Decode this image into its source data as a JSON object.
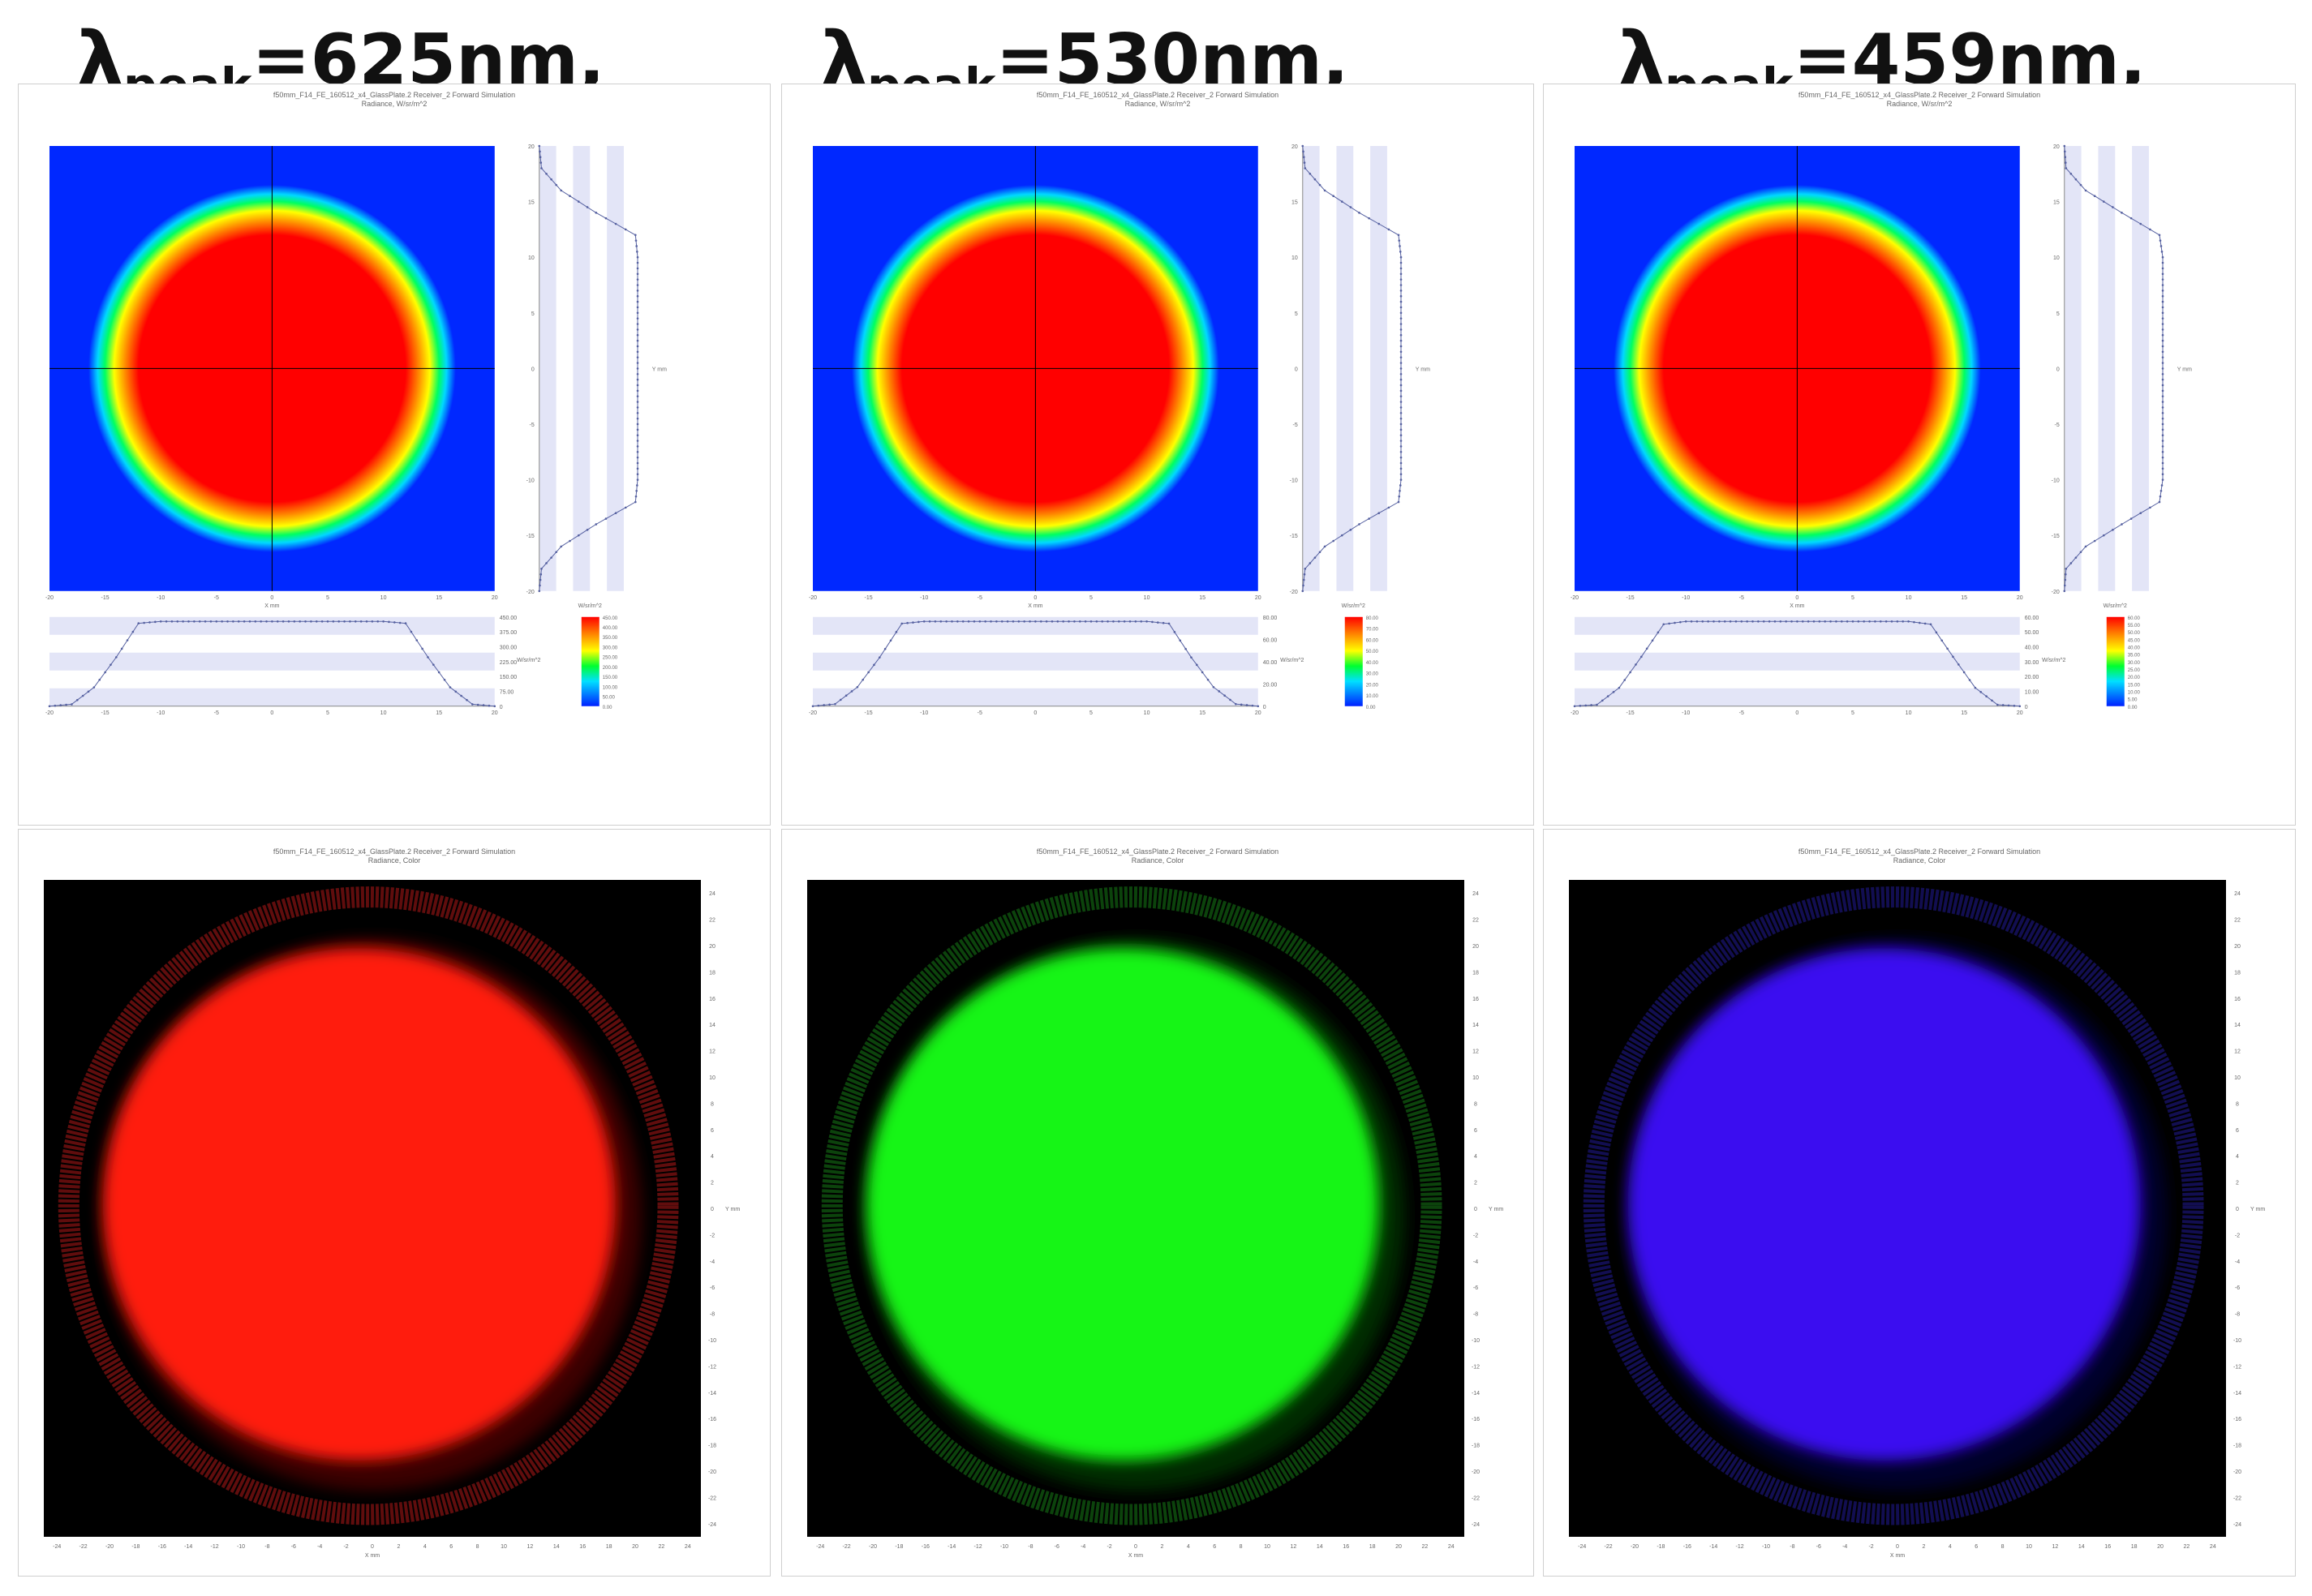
{
  "columns": [
    {
      "title_symbol": "λ",
      "title_sub": "peak",
      "title_value": "=625nm,",
      "top_panel": {
        "header_line1": "f50mm_F14_FE_160512_x4_GlassPlate.2 Receiver_2 Forward Simulation",
        "header_line2": "Radiance, W/sr/m^2",
        "x_axis_label": "X mm",
        "y_axis_label": "Y mm",
        "right_profile_xlabel": "W/sr/m^2",
        "bottom_profile_ylabel": "W/sr/m^2",
        "profile_ticks": [
          "0",
          "75.00",
          "150.00",
          "225.00",
          "300.00",
          "375.00",
          "450.00"
        ],
        "colorbar_ticks": [
          "450.00",
          "400.00",
          "350.00",
          "300.00",
          "250.00",
          "200.00",
          "150.00",
          "100.00",
          "50.00",
          "0.00"
        ]
      },
      "bottom_panel": {
        "header_line1": "f50mm_F14_FE_160512_x4_GlassPlate.2 Receiver_2 Forward Simulation",
        "header_line2": "Radiance, Color",
        "x_axis_label": "X mm",
        "y_axis_label": "Y mm",
        "spot_color": "#ff1a0d",
        "ring_color": "#6a0e0e",
        "glow_color": "#3a0505"
      }
    },
    {
      "title_symbol": "λ",
      "title_sub": "peak",
      "title_value": "=530nm,",
      "top_panel": {
        "header_line1": "f50mm_F14_FE_160512_x4_GlassPlate.2 Receiver_2 Forward Simulation",
        "header_line2": "Radiance, W/sr/m^2",
        "x_axis_label": "X mm",
        "y_axis_label": "Y mm",
        "right_profile_xlabel": "W/sr/m^2",
        "bottom_profile_ylabel": "W/sr/m^2",
        "profile_ticks": [
          "0",
          "20.00",
          "40.00",
          "60.00",
          "80.00"
        ],
        "colorbar_ticks": [
          "80.00",
          "70.00",
          "60.00",
          "50.00",
          "40.00",
          "30.00",
          "20.00",
          "10.00",
          "0.00"
        ]
      },
      "bottom_panel": {
        "header_line1": "f50mm_F14_FE_160512_x4_GlassPlate.2 Receiver_2 Forward Simulation",
        "header_line2": "Radiance, Color",
        "x_axis_label": "X mm",
        "y_axis_label": "Y mm",
        "spot_color": "#14f514",
        "ring_color": "#0d4a0d",
        "glow_color": "#052a05"
      }
    },
    {
      "title_symbol": "λ",
      "title_sub": "peak",
      "title_value": "=459nm,",
      "top_panel": {
        "header_line1": "f50mm_F14_FE_160512_x4_GlassPlate.2 Receiver_2 Forward Simulation",
        "header_line2": "Radiance, W/sr/m^2",
        "x_axis_label": "X mm",
        "y_axis_label": "Y mm",
        "right_profile_xlabel": "W/sr/m^2",
        "bottom_profile_ylabel": "W/sr/m^2",
        "profile_ticks": [
          "0",
          "10.00",
          "20.00",
          "30.00",
          "40.00",
          "50.00",
          "60.00"
        ],
        "colorbar_ticks": [
          "60.00",
          "55.00",
          "50.00",
          "45.00",
          "40.00",
          "35.00",
          "30.00",
          "25.00",
          "20.00",
          "15.00",
          "10.00",
          "5.00",
          "0.00"
        ]
      },
      "bottom_panel": {
        "header_line1": "f50mm_F14_FE_160512_x4_GlassPlate.2 Receiver_2 Forward Simulation",
        "header_line2": "Radiance, Color",
        "x_axis_label": "X mm",
        "y_axis_label": "Y mm",
        "spot_color": "#3a10f0",
        "ring_color": "#14105a",
        "glow_color": "#06052a"
      }
    }
  ],
  "chart_data": [
    {
      "type": "heatmap",
      "title": "f50mm_F14_FE_160512_x4_GlassPlate.2 Receiver_2 Forward Simulation",
      "subtitle": "Radiance, W/sr/m^2",
      "xlabel": "X mm",
      "ylabel": "Y mm",
      "xlim": [
        -20,
        20
      ],
      "ylim": [
        -20,
        20
      ],
      "colormap": "jet",
      "value_range": [
        0,
        450
      ],
      "spot": {
        "center_x": 0,
        "center_y": 0,
        "flat_radius_x": 12,
        "flat_radius_y": 12,
        "falloff_outer_radius": 16.5
      },
      "profile_x": [
        -20,
        -18,
        -16,
        -14,
        -12,
        -10,
        0,
        10,
        12,
        14,
        16,
        18,
        20
      ],
      "profile_y": [
        0,
        10,
        100,
        260,
        440,
        450,
        450,
        450,
        440,
        260,
        100,
        10,
        0
      ]
    },
    {
      "type": "heatmap",
      "title": "f50mm_F14_FE_160512_x4_GlassPlate.2 Receiver_2 Forward Simulation",
      "subtitle": "Radiance, W/sr/m^2",
      "xlabel": "X mm",
      "ylabel": "Y mm",
      "xlim": [
        -20,
        20
      ],
      "ylim": [
        -20,
        20
      ],
      "colormap": "jet",
      "value_range": [
        0,
        80
      ],
      "spot": {
        "center_x": 0,
        "center_y": 0,
        "flat_radius_x": 12,
        "flat_radius_y": 12,
        "falloff_outer_radius": 16.5
      },
      "profile_x": [
        -20,
        -18,
        -16,
        -14,
        -12,
        -10,
        0,
        10,
        12,
        14,
        16,
        18,
        20
      ],
      "profile_y": [
        0,
        2,
        18,
        46,
        78,
        80,
        80,
        80,
        78,
        46,
        18,
        2,
        0
      ]
    },
    {
      "type": "heatmap",
      "title": "f50mm_F14_FE_160512_x4_GlassPlate.2 Receiver_2 Forward Simulation",
      "subtitle": "Radiance, W/sr/m^2",
      "xlabel": "X mm",
      "ylabel": "Y mm",
      "xlim": [
        -20,
        20
      ],
      "ylim": [
        -20,
        20
      ],
      "colormap": "jet",
      "value_range": [
        0,
        60
      ],
      "spot": {
        "center_x": 0,
        "center_y": 0,
        "flat_radius_x": 12,
        "flat_radius_y": 12,
        "falloff_outer_radius": 16.5
      },
      "profile_x": [
        -20,
        -18,
        -16,
        -14,
        -12,
        -10,
        0,
        10,
        12,
        14,
        16,
        18,
        20
      ],
      "profile_y": [
        0,
        1,
        13,
        35,
        58,
        60,
        60,
        60,
        58,
        35,
        13,
        1,
        0
      ]
    }
  ]
}
